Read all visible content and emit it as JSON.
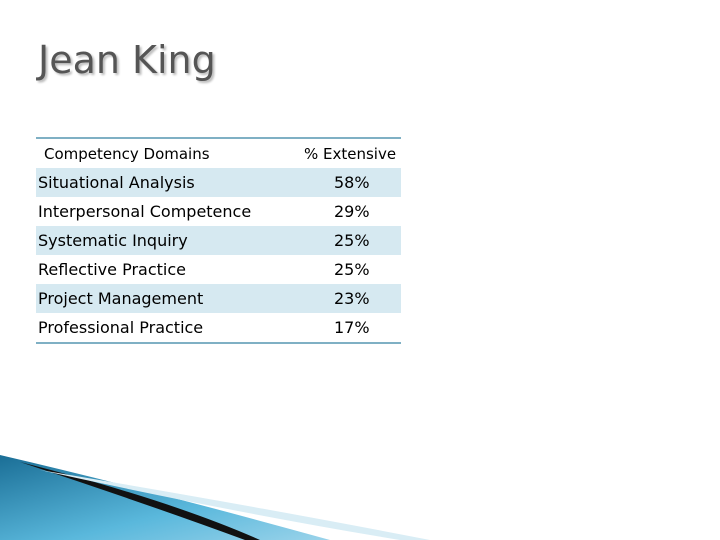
{
  "header": {
    "title": "Jean King"
  },
  "table": {
    "columns": [
      "Competency Domains",
      "% Extensive"
    ],
    "rows": [
      [
        "Situational Analysis",
        "58%"
      ],
      [
        "Interpersonal Competence",
        "29%"
      ],
      [
        "Systematic Inquiry",
        "25%"
      ],
      [
        "Reflective Practice",
        "25%"
      ],
      [
        "Project Management",
        "23%"
      ],
      [
        "Professional Practice",
        "17%"
      ]
    ]
  }
}
